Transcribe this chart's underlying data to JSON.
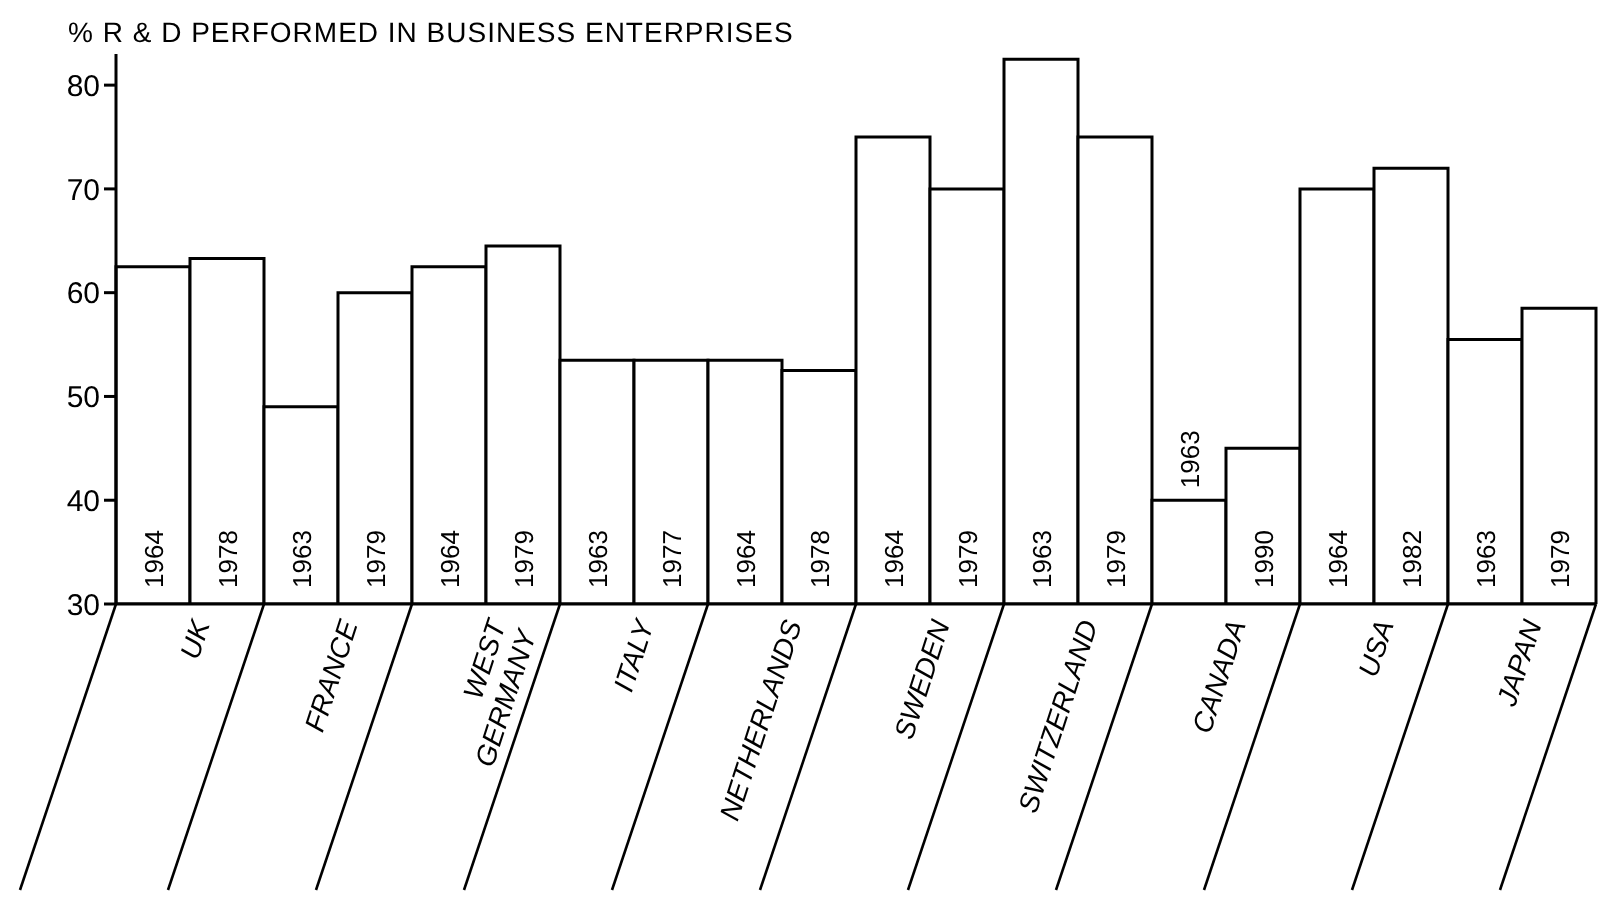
{
  "chart_data": {
    "type": "bar",
    "title": "% R & D PERFORMED IN BUSINESS ENTERPRISES",
    "categories": [
      "1964",
      "1978",
      "1963",
      "1979",
      "1964",
      "1979",
      "1963",
      "1977",
      "1964",
      "1978",
      "1964",
      "1979",
      "1963",
      "1979",
      "1963",
      "1990",
      "1964",
      "1982",
      "1963",
      "1979"
    ],
    "values": [
      62.5,
      63.3,
      49,
      60,
      62.5,
      64.5,
      53.5,
      53.5,
      53.5,
      52.5,
      75,
      70,
      82.5,
      75,
      40,
      45,
      70,
      72,
      55.5,
      58.5
    ],
    "color": "#ffffff",
    "ylim": [
      30,
      83
    ],
    "yticks": [
      30,
      40,
      50,
      60,
      70,
      80
    ],
    "annotations": [
      "UK",
      "FRANCE",
      "WEST\nGERMANY",
      "ITALY",
      "NETHERLANDS",
      "SWEDEN",
      "SWITZERLAND",
      "CANADA",
      "USA",
      "JAPAN"
    ]
  }
}
